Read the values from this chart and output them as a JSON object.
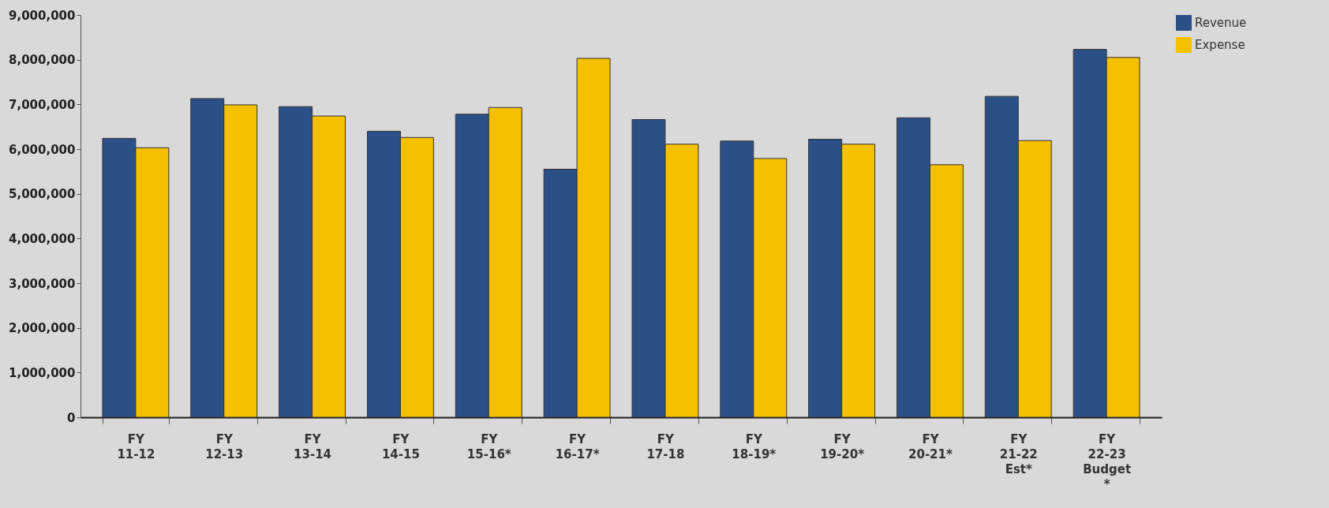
{
  "chart_data": {
    "type": "bar",
    "categories": [
      "FY 11-12",
      "FY 12-13",
      "FY 13-14",
      "FY 14-15",
      "FY 15-16*",
      "FY 16-17*",
      "FY 17-18",
      "FY 18-19*",
      "FY 19-20*",
      "FY 20-21*",
      "FY 21-22 Est*",
      "FY 22-23 Budget *"
    ],
    "series": [
      {
        "name": "Revenue",
        "color": "#2b5088",
        "values": [
          6240000,
          7130000,
          6950000,
          6400000,
          6780000,
          5550000,
          6660000,
          6180000,
          6220000,
          6700000,
          7180000,
          8230000
        ]
      },
      {
        "name": "Expense",
        "color": "#f5c000",
        "values": [
          6030000,
          6990000,
          6740000,
          6260000,
          6930000,
          8030000,
          6110000,
          5790000,
          6110000,
          5650000,
          6190000,
          8050000
        ]
      }
    ],
    "ylim": [
      0,
      9000000
    ],
    "yticks": [
      0,
      {
        "value": 1000000,
        "label": "1,000,000"
      },
      {
        "value": 2000000,
        "label": "2,000,000"
      },
      {
        "value": 3000000,
        "label": "3,000,000"
      },
      {
        "value": 4000000,
        "label": "4,000,000"
      },
      {
        "value": 5000000,
        "label": "5,000,000"
      },
      {
        "value": 6000000,
        "label": "6,000,000"
      },
      {
        "value": 7000000,
        "label": "7,000,000"
      },
      {
        "value": 8000000,
        "label": "8,000,000"
      },
      {
        "value": 9000000,
        "label": "9,000,000"
      }
    ],
    "legend": "right"
  }
}
